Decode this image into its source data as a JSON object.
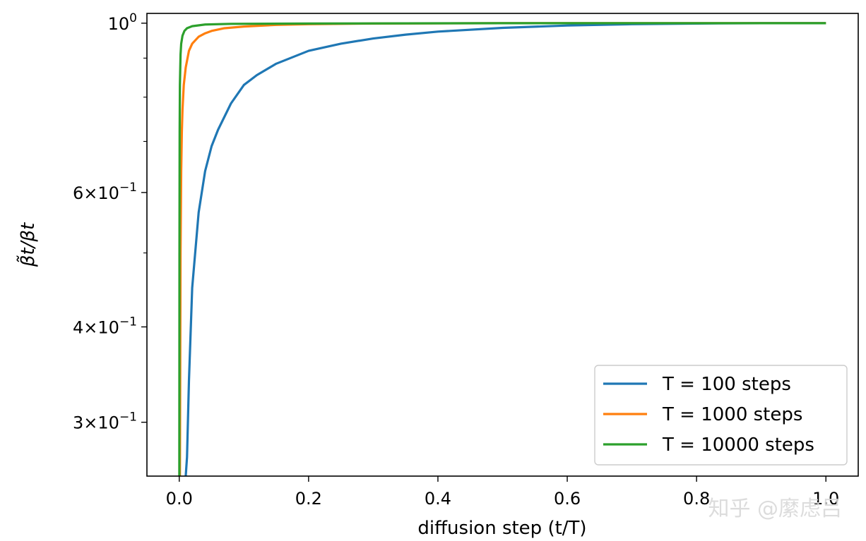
{
  "chart_data": {
    "type": "line",
    "title": "",
    "xlabel": "diffusion step (t/T)",
    "ylabel": "β̃t/βt",
    "yscale": "log",
    "xlim": [
      -0.05,
      1.05
    ],
    "ylim": [
      0.255,
      1.03
    ],
    "grid": false,
    "legend_position": "lower-right",
    "x_ticks": [
      0.0,
      0.2,
      0.4,
      0.6,
      0.8,
      1.0
    ],
    "x_tick_labels": [
      "0.0",
      "0.2",
      "0.4",
      "0.6",
      "0.8",
      "1.0"
    ],
    "y_ticks": [
      {
        "value": 1.0,
        "base": "10",
        "exp": "0",
        "mult": ""
      },
      {
        "value": 0.6,
        "base": "10",
        "exp": "−1",
        "mult": "6×"
      },
      {
        "value": 0.4,
        "base": "10",
        "exp": "−1",
        "mult": "4×"
      },
      {
        "value": 0.3,
        "base": "10",
        "exp": "−1",
        "mult": "3×"
      }
    ],
    "y_minor_ticks": [
      0.5,
      0.7,
      0.8,
      0.9
    ],
    "series": [
      {
        "name": "T = 100 steps",
        "color": "#1f77b4",
        "T": 100,
        "x": [
          0.01,
          0.012,
          0.015,
          0.02,
          0.03,
          0.04,
          0.05,
          0.06,
          0.08,
          0.1,
          0.12,
          0.15,
          0.2,
          0.25,
          0.3,
          0.35,
          0.4,
          0.5,
          0.6,
          0.7,
          0.8,
          0.9,
          1.0
        ],
        "y": [
          0.255,
          0.27,
          0.34,
          0.45,
          0.565,
          0.64,
          0.69,
          0.725,
          0.785,
          0.83,
          0.855,
          0.885,
          0.92,
          0.94,
          0.955,
          0.966,
          0.975,
          0.986,
          0.993,
          0.997,
          0.999,
          1.0,
          1.0
        ]
      },
      {
        "name": "T = 1000 steps",
        "color": "#ff7f0e",
        "T": 1000,
        "x": [
          0.001,
          0.002,
          0.003,
          0.004,
          0.005,
          0.007,
          0.01,
          0.015,
          0.02,
          0.03,
          0.04,
          0.05,
          0.07,
          0.1,
          0.15,
          0.2,
          0.3,
          0.5,
          0.7,
          1.0
        ],
        "y": [
          0.255,
          0.5,
          0.64,
          0.72,
          0.77,
          0.83,
          0.875,
          0.92,
          0.94,
          0.96,
          0.97,
          0.977,
          0.985,
          0.99,
          0.995,
          0.997,
          0.999,
          1.0,
          1.0,
          1.0
        ]
      },
      {
        "name": "T = 10000 steps",
        "color": "#2ca02c",
        "T": 10000,
        "x": [
          0.0001,
          0.0003,
          0.0006,
          0.001,
          0.002,
          0.003,
          0.005,
          0.008,
          0.012,
          0.02,
          0.04,
          0.08,
          0.2,
          0.5,
          1.0
        ],
        "y": [
          0.255,
          0.5,
          0.72,
          0.83,
          0.91,
          0.94,
          0.963,
          0.977,
          0.985,
          0.991,
          0.996,
          0.998,
          0.999,
          1.0,
          1.0
        ]
      }
    ]
  },
  "watermark": "知乎 @縻虑吕"
}
